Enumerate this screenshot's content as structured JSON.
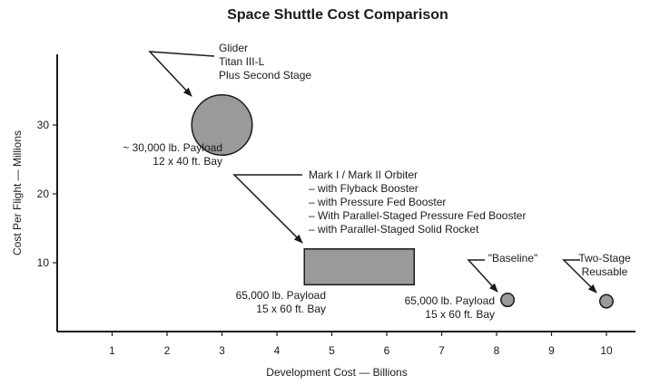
{
  "chart_data": {
    "type": "scatter",
    "title": "Space Shuttle Cost Comparison",
    "xlabel": "Development Cost — Billions",
    "ylabel": "Cost Per Flight — Millions",
    "xlim": [
      0,
      10.3
    ],
    "ylim": [
      0,
      37
    ],
    "xticks": [
      "1",
      "2",
      "3",
      "4",
      "5",
      "6",
      "7",
      "8",
      "9",
      "10"
    ],
    "yticks": [
      "10",
      "20",
      "30"
    ],
    "grid": false,
    "marker_color": "#9a9a9a",
    "points": [
      {
        "id": "glider",
        "shape": "circle",
        "x": 3.0,
        "y": 30.0,
        "x_radius": 0.55,
        "label_lines": [
          "Glider",
          "Titan III-L",
          "Plus Second Stage"
        ],
        "payload_lines": [
          "~ 30,000 lb. Payload",
          "12 x 40 ft. Bay"
        ]
      },
      {
        "id": "orbiter",
        "shape": "rect",
        "x_range": [
          4.5,
          6.5
        ],
        "y_range": [
          6.8,
          12.0
        ],
        "label_lines": [
          "Mark I / Mark II Orbiter",
          "– with Flyback Booster",
          "– with Pressure Fed Booster",
          "– With Parallel-Staged Pressure Fed Booster",
          "– with Parallel-Staged Solid Rocket"
        ],
        "payload_lines": [
          "65,000 lb. Payload",
          "15 x 60 ft. Bay"
        ]
      },
      {
        "id": "baseline",
        "shape": "circle",
        "x": 8.2,
        "y": 4.6,
        "x_radius": 0.12,
        "label_lines": [
          "\"Baseline\""
        ],
        "payload_lines": [
          "65,000 lb. Payload",
          "15 x 60 ft. Bay"
        ]
      },
      {
        "id": "two-stage",
        "shape": "circle",
        "x": 10.0,
        "y": 4.4,
        "x_radius": 0.12,
        "label_lines": [
          "Two-Stage",
          "Reusable"
        ],
        "payload_lines": []
      }
    ]
  }
}
